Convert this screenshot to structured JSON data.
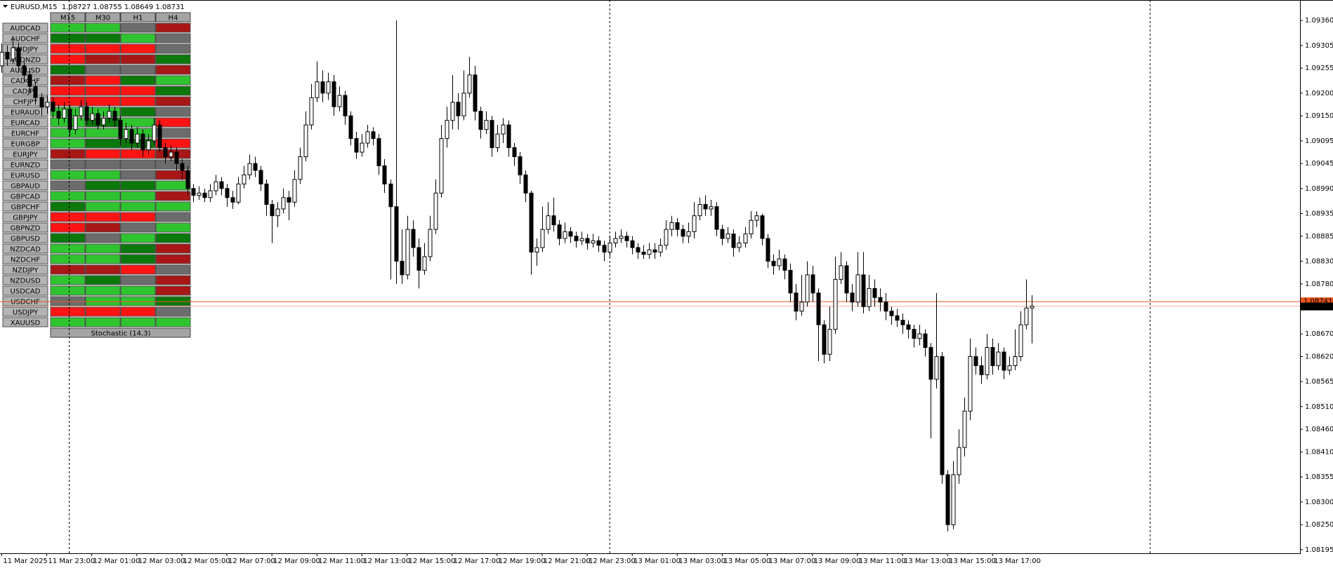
{
  "chart_data": {
    "type": "candlestick",
    "title": "EURUSD,M15  1.08727 1.08755 1.08649 1.08731",
    "up_color": "#ffffff",
    "down_color": "#000000",
    "wick_color": "#000000",
    "categories": [
      "11 Mar 2025",
      null,
      null,
      null,
      null,
      null,
      null,
      null,
      "11 Mar 23:00",
      null,
      null,
      null,
      null,
      null,
      null,
      null,
      "12 Mar 01:00",
      null,
      null,
      null,
      null,
      null,
      null,
      null,
      "12 Mar 03:00",
      null,
      null,
      null,
      null,
      null,
      null,
      null,
      "12 Mar 05:00",
      null,
      null,
      null,
      null,
      null,
      null,
      null,
      "12 Mar 07:00",
      null,
      null,
      null,
      null,
      null,
      null,
      null,
      "12 Mar 09:00",
      null,
      null,
      null,
      null,
      null,
      null,
      null,
      "12 Mar 11:00",
      null,
      null,
      null,
      null,
      null,
      null,
      null,
      "12 Mar 13:00",
      null,
      null,
      null,
      null,
      null,
      null,
      null,
      "12 Mar 15:00",
      null,
      null,
      null,
      null,
      null,
      null,
      null,
      "12 Mar 17:00",
      null,
      null,
      null,
      null,
      null,
      null,
      null,
      "12 Mar 19:00",
      null,
      null,
      null,
      null,
      null,
      null,
      null,
      "12 Mar 21:00",
      null,
      null,
      null,
      null,
      null,
      null,
      null,
      "12 Mar 23:00",
      null,
      null,
      null,
      null,
      null,
      null,
      null,
      "13 Mar 01:00",
      null,
      null,
      null,
      null,
      null,
      null,
      null,
      "13 Mar 03:00",
      null,
      null,
      null,
      null,
      null,
      null,
      null,
      "13 Mar 05:00",
      null,
      null,
      null,
      null,
      null,
      null,
      null,
      "13 Mar 07:00",
      null,
      null,
      null,
      null,
      null,
      null,
      null,
      "13 Mar 09:00",
      null,
      null,
      null,
      null,
      null,
      null,
      null,
      "13 Mar 11:00",
      null,
      null,
      null,
      null,
      null,
      null,
      null,
      "13 Mar 13:00",
      null,
      null,
      null,
      null,
      null,
      null,
      null,
      "13 Mar 15:00",
      null,
      null,
      null,
      null,
      null,
      null,
      null,
      "13 Mar 17:00",
      null,
      null,
      null,
      null,
      null,
      null,
      null
    ],
    "open": [
      1.0926,
      1.0929,
      1.09275,
      1.093,
      1.0926,
      1.0924,
      1.09215,
      1.0919,
      1.0917,
      1.0918,
      1.0916,
      1.09145,
      1.09165,
      1.0912,
      1.0915,
      1.0917,
      1.0914,
      1.09155,
      1.0913,
      1.09145,
      1.0916,
      1.0914,
      1.091,
      1.0912,
      1.0909,
      1.0911,
      1.09075,
      1.09095,
      1.0913,
      1.0908,
      1.0906,
      1.0907,
      1.09045,
      1.0903,
      1.0899,
      1.08975,
      1.0898,
      1.0897,
      1.08985,
      1.09005,
      1.0899,
      1.0897,
      1.0896,
      1.09,
      1.0902,
      1.09045,
      1.0903,
      1.09,
      1.08955,
      1.0893,
      1.08945,
      1.0897,
      1.0896,
      1.0901,
      1.0906,
      1.0913,
      1.0919,
      1.09225,
      1.092,
      1.09225,
      1.0917,
      1.09195,
      1.0915,
      1.091,
      1.0907,
      1.0909,
      1.09115,
      1.091,
      1.0904,
      1.09,
      1.0895,
      1.0883,
      1.088,
      1.089,
      1.0886,
      1.0881,
      1.0884,
      1.089,
      1.0898,
      1.091,
      1.0914,
      1.0918,
      1.0915,
      1.092,
      1.0924,
      1.0916,
      1.0912,
      1.0914,
      1.0908,
      1.0911,
      1.0913,
      1.0908,
      1.0906,
      1.0902,
      1.0898,
      1.0885,
      1.0886,
      1.089,
      1.0893,
      1.0891,
      1.0888,
      1.08895,
      1.08885,
      1.08875,
      1.0888,
      1.0887,
      1.08875,
      1.08865,
      1.0885,
      1.0887,
      1.0888,
      1.08885,
      1.08875,
      1.0886,
      1.0885,
      1.08845,
      1.08855,
      1.0885,
      1.08865,
      1.089,
      1.08915,
      1.089,
      1.08885,
      1.08895,
      1.0893,
      1.08955,
      1.08945,
      1.0895,
      1.089,
      1.0888,
      1.0889,
      1.0886,
      1.0887,
      1.0889,
      1.0892,
      1.0893,
      1.0888,
      1.0883,
      1.0882,
      1.08835,
      1.0881,
      1.0876,
      1.0872,
      1.0874,
      1.088,
      1.0876,
      1.0869,
      1.08625,
      1.0868,
      1.0879,
      1.0882,
      1.0876,
      1.0874,
      1.088,
      1.0873,
      1.0877,
      1.0875,
      1.0874,
      1.0872,
      1.0871,
      1.087,
      1.0869,
      1.0868,
      1.0866,
      1.0867,
      1.0864,
      1.0857,
      1.0862,
      1.0836,
      1.0825,
      1.0836,
      1.0842,
      1.085,
      1.0862,
      1.086,
      1.0858,
      1.0864,
      1.086,
      1.0863,
      1.0859,
      1.086,
      1.0862,
      1.0869,
      1.08727
    ],
    "high": [
      1.0931,
      1.09305,
      1.0932,
      1.0931,
      1.0927,
      1.0925,
      1.09225,
      1.092,
      1.09195,
      1.0919,
      1.09175,
      1.0918,
      1.09175,
      1.09165,
      1.09185,
      1.0918,
      1.0917,
      1.09165,
      1.0916,
      1.09175,
      1.0917,
      1.0915,
      1.09135,
      1.0913,
      1.09125,
      1.0912,
      1.0911,
      1.09145,
      1.0914,
      1.0909,
      1.09085,
      1.0908,
      1.09055,
      1.0904,
      1.09,
      1.08995,
      1.0899,
      1.09,
      1.0902,
      1.09015,
      1.09,
      1.08985,
      1.09015,
      1.0904,
      1.09065,
      1.0906,
      1.0904,
      1.0901,
      1.08965,
      1.0896,
      1.0899,
      1.08985,
      1.0903,
      1.0908,
      1.0916,
      1.0922,
      1.0927,
      1.0925,
      1.09245,
      1.0924,
      1.09215,
      1.09205,
      1.0916,
      1.09115,
      1.0911,
      1.0913,
      1.09125,
      1.0911,
      1.09055,
      1.0901,
      1.0936,
      1.089,
      1.0893,
      1.0892,
      1.0888,
      1.0887,
      1.0893,
      1.0901,
      1.0913,
      1.0917,
      1.0924,
      1.092,
      1.0925,
      1.0928,
      1.0926,
      1.0917,
      1.0916,
      1.0915,
      1.0913,
      1.09145,
      1.0914,
      1.0909,
      1.0907,
      1.0903,
      1.08985,
      1.0888,
      1.0895,
      1.0896,
      1.0897,
      1.0892,
      1.08915,
      1.08905,
      1.08895,
      1.08895,
      1.0889,
      1.0889,
      1.08885,
      1.08875,
      1.08885,
      1.08895,
      1.089,
      1.08895,
      1.08885,
      1.0887,
      1.08865,
      1.0887,
      1.0887,
      1.0888,
      1.0892,
      1.0893,
      1.08925,
      1.0891,
      1.08915,
      1.0896,
      1.0897,
      1.08975,
      1.08965,
      1.0896,
      1.0891,
      1.08905,
      1.089,
      1.08885,
      1.08905,
      1.0894,
      1.0894,
      1.08935,
      1.0889,
      1.08845,
      1.08855,
      1.08845,
      1.08825,
      1.0878,
      1.088,
      1.0883,
      1.0882,
      1.0877,
      1.087,
      1.0873,
      1.0884,
      1.0885,
      1.0883,
      1.0878,
      1.0885,
      1.0885,
      1.088,
      1.0879,
      1.0877,
      1.0876,
      1.0873,
      1.08725,
      1.08715,
      1.087,
      1.0869,
      1.0869,
      1.0868,
      1.0865,
      1.0876,
      1.0863,
      1.0837,
      1.0839,
      1.0846,
      1.0853,
      1.0866,
      1.0864,
      1.0862,
      1.0867,
      1.0866,
      1.0865,
      1.0864,
      1.0862,
      1.0868,
      1.0872,
      1.0879,
      1.08755
    ],
    "low": [
      1.09245,
      1.0926,
      1.09265,
      1.09245,
      1.09225,
      1.092,
      1.09175,
      1.0915,
      1.09155,
      1.09145,
      1.0913,
      1.09135,
      1.09105,
      1.0911,
      1.0914,
      1.0913,
      1.0913,
      1.0912,
      1.0912,
      1.09135,
      1.09125,
      1.09085,
      1.0909,
      1.09075,
      1.0908,
      1.0906,
      1.09065,
      1.09085,
      1.0907,
      1.09045,
      1.0905,
      1.0903,
      1.0901,
      1.08975,
      1.0896,
      1.08965,
      1.0896,
      1.0896,
      1.08975,
      1.08975,
      1.0895,
      1.08945,
      1.08955,
      1.0899,
      1.0901,
      1.09015,
      1.08985,
      1.0893,
      1.0887,
      1.08905,
      1.08935,
      1.0892,
      1.0895,
      1.09,
      1.0905,
      1.0912,
      1.0918,
      1.0918,
      1.09185,
      1.0915,
      1.0916,
      1.0913,
      1.09085,
      1.09055,
      1.0906,
      1.0908,
      1.09085,
      1.0902,
      1.0898,
      1.0879,
      1.0878,
      1.0878,
      1.0879,
      1.0884,
      1.0877,
      1.088,
      1.0883,
      1.0889,
      1.0897,
      1.0908,
      1.0912,
      1.0912,
      1.0914,
      1.0919,
      1.0914,
      1.091,
      1.0911,
      1.0906,
      1.0907,
      1.0909,
      1.0906,
      1.0904,
      1.09,
      1.0896,
      1.088,
      1.0882,
      1.0885,
      1.0889,
      1.08895,
      1.08865,
      1.0887,
      1.0887,
      1.0886,
      1.08865,
      1.08855,
      1.0886,
      1.0885,
      1.0883,
      1.0884,
      1.0886,
      1.0887,
      1.0886,
      1.08845,
      1.08835,
      1.08835,
      1.08835,
      1.08835,
      1.0884,
      1.08855,
      1.08885,
      1.08885,
      1.0887,
      1.0887,
      1.0888,
      1.0892,
      1.0893,
      1.0893,
      1.08885,
      1.08865,
      1.0887,
      1.0884,
      1.0885,
      1.0886,
      1.0888,
      1.08905,
      1.08865,
      1.08815,
      1.088,
      1.0881,
      1.0879,
      1.0874,
      1.087,
      1.0871,
      1.0873,
      1.0874,
      1.0861,
      1.08605,
      1.0861,
      1.0867,
      1.0878,
      1.0874,
      1.0872,
      1.0873,
      1.08715,
      1.0872,
      1.0873,
      1.0872,
      1.087,
      1.0869,
      1.08685,
      1.0867,
      1.0866,
      1.0864,
      1.08645,
      1.0862,
      1.0844,
      1.0855,
      1.0834,
      1.08235,
      1.0824,
      1.0834,
      1.084,
      1.0848,
      1.0858,
      1.0856,
      1.0857,
      1.0858,
      1.0859,
      1.0857,
      1.0858,
      1.0859,
      1.0861,
      1.0868,
      1.08649
    ],
    "close": [
      1.0929,
      1.09275,
      1.093,
      1.0926,
      1.0924,
      1.09215,
      1.0919,
      1.0917,
      1.0918,
      1.0916,
      1.09145,
      1.09165,
      1.0912,
      1.0915,
      1.0917,
      1.0914,
      1.09155,
      1.0913,
      1.09145,
      1.0916,
      1.0914,
      1.091,
      1.0912,
      1.0909,
      1.0911,
      1.09075,
      1.09095,
      1.0913,
      1.0908,
      1.0906,
      1.0907,
      1.09045,
      1.0903,
      1.0899,
      1.08975,
      1.0898,
      1.0897,
      1.08985,
      1.09005,
      1.0899,
      1.0897,
      1.0896,
      1.09,
      1.0902,
      1.09045,
      1.0903,
      1.09,
      1.08955,
      1.0893,
      1.08945,
      1.0897,
      1.0896,
      1.0901,
      1.0906,
      1.0913,
      1.0919,
      1.09225,
      1.092,
      1.09225,
      1.0917,
      1.09195,
      1.0915,
      1.091,
      1.0907,
      1.0909,
      1.09115,
      1.091,
      1.0904,
      1.09,
      1.0895,
      1.0883,
      1.088,
      1.089,
      1.0886,
      1.0881,
      1.0884,
      1.089,
      1.0898,
      1.091,
      1.0914,
      1.0918,
      1.0915,
      1.092,
      1.0924,
      1.0916,
      1.0912,
      1.0914,
      1.0908,
      1.0911,
      1.0913,
      1.0908,
      1.0906,
      1.0902,
      1.0898,
      1.0885,
      1.0886,
      1.089,
      1.0893,
      1.0891,
      1.0888,
      1.08895,
      1.08885,
      1.08875,
      1.0888,
      1.0887,
      1.08875,
      1.08865,
      1.0885,
      1.0887,
      1.0888,
      1.08885,
      1.08875,
      1.0886,
      1.0885,
      1.08845,
      1.08855,
      1.0885,
      1.08865,
      1.089,
      1.08915,
      1.089,
      1.08885,
      1.08895,
      1.0893,
      1.08955,
      1.08945,
      1.0895,
      1.089,
      1.0888,
      1.0889,
      1.0886,
      1.0887,
      1.0889,
      1.0892,
      1.0893,
      1.0888,
      1.0883,
      1.0882,
      1.08835,
      1.0881,
      1.0876,
      1.0872,
      1.0874,
      1.088,
      1.0876,
      1.0869,
      1.08625,
      1.0868,
      1.0879,
      1.0882,
      1.0876,
      1.0874,
      1.088,
      1.0873,
      1.0877,
      1.0875,
      1.0874,
      1.0872,
      1.0871,
      1.087,
      1.0869,
      1.0868,
      1.0866,
      1.0867,
      1.0864,
      1.0857,
      1.0862,
      1.0836,
      1.0825,
      1.0836,
      1.0842,
      1.085,
      1.0862,
      1.086,
      1.0858,
      1.0864,
      1.086,
      1.0863,
      1.0859,
      1.086,
      1.0862,
      1.0869,
      1.08727,
      1.08731
    ],
    "ylim": [
      1.08187,
      1.09405
    ],
    "yticks": [
      1.08195,
      {
        "value": 1.0825,
        "label": "1.08250"
      },
      {
        "value": 1.083,
        "label": "1.08300"
      },
      1.08355,
      {
        "value": 1.0841,
        "label": "1.08410"
      },
      {
        "value": 1.0846,
        "label": "1.08460"
      },
      {
        "value": 1.0851,
        "label": "1.08510"
      },
      1.08565,
      {
        "value": 1.0862,
        "label": "1.08620"
      },
      {
        "value": 1.0867,
        "label": "1.08670"
      },
      {
        "value": 1.0878,
        "label": "1.08780"
      },
      {
        "value": 1.0883,
        "label": "1.08830"
      },
      1.08885,
      1.08935,
      {
        "value": 1.0899,
        "label": "1.08990"
      },
      1.09045,
      1.09095,
      {
        "value": 1.0915,
        "label": "1.09150"
      },
      {
        "value": 1.092,
        "label": "1.09200"
      },
      1.09255,
      1.09305,
      {
        "value": 1.0936,
        "label": "1.09360"
      }
    ],
    "ask": 1.08741,
    "ask_color": "#e8541c",
    "bid": 1.08731,
    "bid_color": "#000000"
  },
  "panel": {
    "headers": [
      "M15",
      "M30",
      "H1",
      "H4"
    ],
    "palette": {
      "G": "#2fc42f",
      "DG": "#0a780a",
      "R": "#ff1414",
      "DR": "#a81616",
      "N": "#6c6c6c"
    },
    "rows": [
      {
        "symbol": "AUDCAD",
        "signals": [
          "G",
          "G",
          "N",
          "DR"
        ]
      },
      {
        "symbol": "AUDCHF",
        "signals": [
          "DG",
          "DG",
          "G",
          "N"
        ]
      },
      {
        "symbol": "AUDJPY",
        "signals": [
          "R",
          "R",
          "R",
          "N"
        ]
      },
      {
        "symbol": "AUDNZD",
        "signals": [
          "R",
          "DR",
          "DR",
          "DG"
        ]
      },
      {
        "symbol": "AUDUSD",
        "signals": [
          "DG",
          "N",
          "N",
          "DR"
        ]
      },
      {
        "symbol": "CADCHF",
        "signals": [
          "DR",
          "R",
          "DG",
          "G"
        ]
      },
      {
        "symbol": "CADJPY",
        "signals": [
          "R",
          "R",
          "R",
          "DG"
        ]
      },
      {
        "symbol": "CHFJPY",
        "signals": [
          "R",
          "R",
          "R",
          "DR"
        ]
      },
      {
        "symbol": "EURAUD",
        "signals": [
          "G",
          "G",
          "DG",
          "N"
        ]
      },
      {
        "symbol": "EURCAD",
        "signals": [
          "G",
          "DG",
          "G",
          "R"
        ]
      },
      {
        "symbol": "EURCHF",
        "signals": [
          "G",
          "G",
          "G",
          "N"
        ]
      },
      {
        "symbol": "EURGBP",
        "signals": [
          "G",
          "DG",
          "DG",
          "R"
        ]
      },
      {
        "symbol": "EURJPY",
        "signals": [
          "DR",
          "R",
          "R",
          "DR"
        ]
      },
      {
        "symbol": "EURNZD",
        "signals": [
          "N",
          "N",
          "N",
          "N"
        ]
      },
      {
        "symbol": "EURUSD",
        "signals": [
          "G",
          "G",
          "N",
          "DR"
        ]
      },
      {
        "symbol": "GBPAUD",
        "signals": [
          "N",
          "DG",
          "DG",
          "G"
        ]
      },
      {
        "symbol": "GBPCAD",
        "signals": [
          "G",
          "G",
          "G",
          "DR"
        ]
      },
      {
        "symbol": "GBPCHF",
        "signals": [
          "DG",
          "G",
          "G",
          "G"
        ]
      },
      {
        "symbol": "GBPJPY",
        "signals": [
          "R",
          "R",
          "R",
          "N"
        ]
      },
      {
        "symbol": "GBPNZD",
        "signals": [
          "R",
          "DR",
          "N",
          "G"
        ]
      },
      {
        "symbol": "GBPUSD",
        "signals": [
          "DG",
          "N",
          "G",
          "DG"
        ]
      },
      {
        "symbol": "NZDCAD",
        "signals": [
          "G",
          "G",
          "DG",
          "DR"
        ]
      },
      {
        "symbol": "NZDCHF",
        "signals": [
          "G",
          "G",
          "DG",
          "DR"
        ]
      },
      {
        "symbol": "NZDJPY",
        "signals": [
          "DR",
          "DR",
          "R",
          "N"
        ]
      },
      {
        "symbol": "NZDUSD",
        "signals": [
          "G",
          "DG",
          "N",
          "DR"
        ]
      },
      {
        "symbol": "USDCAD",
        "signals": [
          "G",
          "G",
          "G",
          "DR"
        ]
      },
      {
        "symbol": "USDCHF",
        "signals": [
          "N",
          "G",
          "G",
          "DG"
        ]
      },
      {
        "symbol": "USDJPY",
        "signals": [
          "R",
          "R",
          "R",
          "N"
        ]
      },
      {
        "symbol": "XAUUSD",
        "signals": [
          "G",
          "G",
          "G",
          "G"
        ]
      }
    ],
    "footer": "Stochastic (14,3)"
  }
}
